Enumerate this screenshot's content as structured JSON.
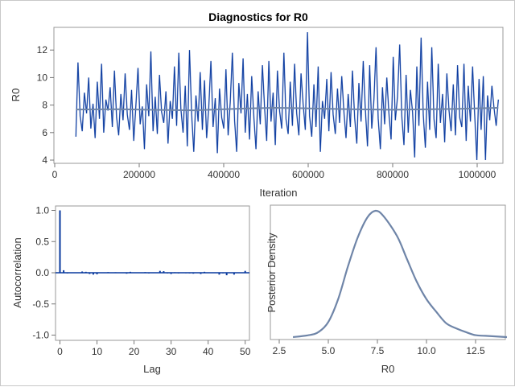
{
  "chart_data": [
    {
      "type": "line",
      "title": "Diagnostics for R0",
      "xlabel": "Iteration",
      "ylabel": "R0",
      "xlim": [
        0,
        1050000
      ],
      "ylim": [
        3.8,
        13.5
      ],
      "xticks": [
        "0",
        "200000",
        "400000",
        "600000",
        "800000",
        "1000000"
      ],
      "xtick_values": [
        0,
        200000,
        400000,
        600000,
        800000,
        1000000
      ],
      "yticks": [
        "4",
        "6",
        "8",
        "10",
        "12"
      ],
      "ytick_values": [
        4,
        6,
        8,
        10,
        12
      ],
      "trace_color": "#0a3a9e",
      "mean_color": "#6f85a8",
      "x_start": 50000,
      "x_end": 1050000,
      "trace_values": [
        5.7,
        11.1,
        7.2,
        6.1,
        8.9,
        7.4,
        10.0,
        6.3,
        8.1,
        5.6,
        9.7,
        7.0,
        11.0,
        6.0,
        8.4,
        7.6,
        9.3,
        6.4,
        10.5,
        7.1,
        5.8,
        8.8,
        6.9,
        10.3,
        7.3,
        6.2,
        9.1,
        5.4,
        8.0,
        10.7,
        6.6,
        7.9,
        4.8,
        9.5,
        7.2,
        11.9,
        6.1,
        8.6,
        5.9,
        10.2,
        7.5,
        6.7,
        9.0,
        5.2,
        8.3,
        7.0,
        10.8,
        6.5,
        11.8,
        7.7,
        6.0,
        9.4,
        5.0,
        12.0,
        7.3,
        4.6,
        8.7,
        6.8,
        10.4,
        6.2,
        9.8,
        5.6,
        7.9,
        11.2,
        6.4,
        8.5,
        4.5,
        9.2,
        7.1,
        6.3,
        10.6,
        5.8,
        8.2,
        11.8,
        6.9,
        4.6,
        9.6,
        7.4,
        11.4,
        6.0,
        8.8,
        5.5,
        10.1,
        7.2,
        4.8,
        9.0,
        6.6,
        10.9,
        7.8,
        5.4,
        11.2,
        6.8,
        8.9,
        5.1,
        10.5,
        7.6,
        6.3,
        11.8,
        7.0,
        5.9,
        9.7,
        6.5,
        11.0,
        7.4,
        5.8,
        10.3,
        8.1,
        6.2,
        13.3,
        7.2,
        5.7,
        9.5,
        6.4,
        10.8,
        4.6,
        8.3,
        7.0,
        9.9,
        6.1,
        10.4,
        7.3,
        5.9,
        9.2,
        6.7,
        10.1,
        7.5,
        5.6,
        8.8,
        6.4,
        10.5,
        7.1,
        5.2,
        9.6,
        6.8,
        11.2,
        7.7,
        5.0,
        10.9,
        6.3,
        8.4,
        12.2,
        7.0,
        4.8,
        9.3,
        6.6,
        10.0,
        7.4,
        5.5,
        11.5,
        6.9,
        8.6,
        12.4,
        7.2,
        5.1,
        10.2,
        6.0,
        9.1,
        7.5,
        4.2,
        10.8,
        6.5,
        12.9,
        7.3,
        4.9,
        9.7,
        6.2,
        12.2,
        7.0,
        5.6,
        11.0,
        6.7,
        8.8,
        5.3,
        10.3,
        7.6,
        6.1,
        9.5,
        5.8,
        10.9,
        7.1,
        6.4,
        11.0,
        5.4,
        9.4,
        6.8,
        10.8,
        7.3,
        4.0,
        9.9,
        6.2,
        10.1,
        4.0,
        8.7,
        6.9,
        9.4,
        7.8,
        6.5,
        8.4
      ],
      "mean_values": [
        {
          "iteration": 50000,
          "value": 7.68
        },
        {
          "iteration": 150000,
          "value": 7.7
        },
        {
          "iteration": 250000,
          "value": 7.65
        },
        {
          "iteration": 330000,
          "value": 7.62
        },
        {
          "iteration": 450000,
          "value": 7.75
        },
        {
          "iteration": 520000,
          "value": 7.8
        },
        {
          "iteration": 600000,
          "value": 7.76
        },
        {
          "iteration": 700000,
          "value": 7.7
        },
        {
          "iteration": 800000,
          "value": 7.66
        },
        {
          "iteration": 950000,
          "value": 7.72
        },
        {
          "iteration": 1050000,
          "value": 7.8
        }
      ]
    },
    {
      "type": "bar",
      "xlabel": "Lag",
      "ylabel": "Autocorrelation",
      "xlim": [
        -1,
        51
      ],
      "ylim": [
        -1.05,
        1.05
      ],
      "xticks": [
        "0",
        "10",
        "20",
        "30",
        "40",
        "50"
      ],
      "xtick_values": [
        0,
        10,
        20,
        30,
        40,
        50
      ],
      "yticks": [
        "1.0",
        "0.5",
        "0.0",
        "-0.5",
        "-1.0"
      ],
      "ytick_values": [
        1.0,
        0.5,
        0.0,
        -0.5,
        -1.0
      ],
      "bar_color": "#0a3a9e",
      "lags": [
        0,
        1,
        2,
        3,
        4,
        5,
        6,
        7,
        8,
        9,
        10,
        11,
        12,
        13,
        14,
        15,
        16,
        17,
        18,
        19,
        20,
        21,
        22,
        23,
        24,
        25,
        26,
        27,
        28,
        29,
        30,
        31,
        32,
        33,
        34,
        35,
        36,
        37,
        38,
        39,
        40,
        41,
        42,
        43,
        44,
        45,
        46,
        47,
        48,
        49,
        50
      ],
      "values": [
        1.0,
        0.04,
        -0.01,
        0.005,
        -0.005,
        0.0,
        0.02,
        0.015,
        -0.02,
        -0.03,
        -0.025,
        -0.005,
        0.005,
        0.01,
        -0.005,
        0.008,
        0.0,
        0.005,
        -0.015,
        0.015,
        0.0,
        -0.005,
        0.005,
        0.01,
        -0.01,
        0.005,
        0.005,
        0.03,
        0.025,
        -0.01,
        -0.02,
        0.008,
        -0.01,
        0.0,
        -0.008,
        -0.01,
        -0.015,
        0.0,
        -0.02,
        0.015,
        0.0,
        0.0,
        0.0,
        -0.03,
        -0.01,
        -0.04,
        0.0,
        -0.03,
        0.0,
        0.0,
        0.03
      ]
    },
    {
      "type": "line",
      "xlabel": "R0",
      "ylabel": "Posterior Density",
      "xlim": [
        2.5,
        14.2
      ],
      "xticks": [
        "2.5",
        "5.0",
        "7.5",
        "10.0",
        "12.5"
      ],
      "xtick_values": [
        2.5,
        5.0,
        7.5,
        10.0,
        12.5
      ],
      "line_color": "#6f85a8",
      "x": [
        3.2,
        4.0,
        4.5,
        5.0,
        5.5,
        6.0,
        6.5,
        7.0,
        7.4,
        7.8,
        8.5,
        9.0,
        9.5,
        10.0,
        10.5,
        11.0,
        11.5,
        12.0,
        12.5,
        13.0,
        14.1
      ],
      "density_relative": [
        0.0,
        0.015,
        0.04,
        0.12,
        0.3,
        0.56,
        0.79,
        0.95,
        1.0,
        0.96,
        0.8,
        0.62,
        0.44,
        0.3,
        0.2,
        0.11,
        0.07,
        0.04,
        0.015,
        0.01,
        0.0
      ]
    }
  ]
}
